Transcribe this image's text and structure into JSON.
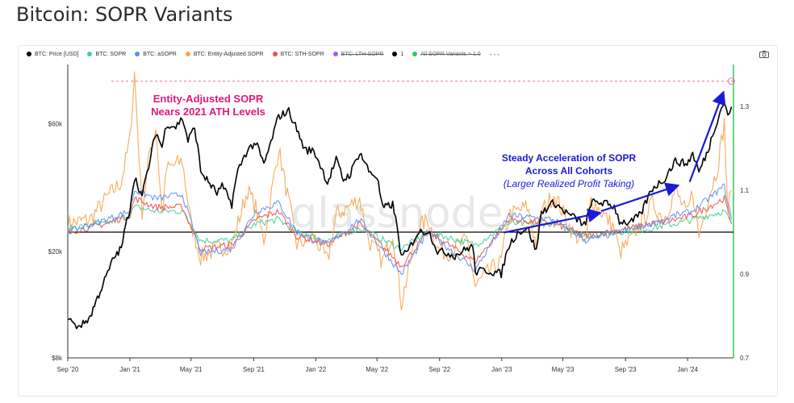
{
  "page": {
    "title": "Bitcoin: SOPR Variants"
  },
  "legend": [
    {
      "label": "BTC: Price [USD]",
      "color": "#000000",
      "struck": false
    },
    {
      "label": "BTC: SOPR",
      "color": "#3ed19b",
      "struck": false
    },
    {
      "label": "BTC: aSOPR",
      "color": "#5b8ff9",
      "struck": false
    },
    {
      "label": "BTC: Entity-Adjusted SOPR",
      "color": "#f7a44a",
      "struck": false
    },
    {
      "label": "BTC: STH-SOPR",
      "color": "#f0504f",
      "struck": false
    },
    {
      "label": "BTC: LTH-SOPR",
      "color": "#a75cf0",
      "struck": true
    },
    {
      "label": "1",
      "color": "#000000",
      "struck": false
    },
    {
      "label": "All SOPR Variants > 1.0",
      "color": "#34c75c",
      "struck": true
    }
  ],
  "legend_more": "- - -",
  "watermark": "glassnode",
  "annotations": {
    "ath_line1": "Entity-Adjusted SOPR",
    "ath_line2": "Nears 2021 ATH Levels",
    "accel_line1": "Steady Acceleration of SOPR",
    "accel_line2": "Across All Cohorts",
    "accel_line3": "(Larger Realized Profit Taking)"
  },
  "chart_data": {
    "type": "line",
    "x_axis": {
      "ticks": [
        "Sep '20",
        "Jan '21",
        "May '21",
        "Sep '21",
        "Jan '22",
        "May '22",
        "Sep '22",
        "Jan '23",
        "May '23",
        "Sep '23",
        "Jan '24"
      ],
      "range": [
        "2020-09-01",
        "2024-03-31"
      ]
    },
    "y_left": {
      "scale": "log",
      "ticks": [
        "$8k",
        "$20k",
        "$60k"
      ],
      "tick_values": [
        8000,
        20000,
        60000
      ],
      "range": [
        8000,
        100000
      ]
    },
    "y_right": {
      "scale": "linear",
      "ticks": [
        "0.7",
        "0.9",
        "1.1",
        "1.3"
      ],
      "tick_values": [
        0.7,
        0.9,
        1.1,
        1.3
      ],
      "range": [
        0.7,
        1.4
      ]
    },
    "reference_line": {
      "name": "1",
      "axis": "right",
      "value": 1.0,
      "color": "#000000"
    },
    "ath_level_line": {
      "axis": "right",
      "value": 1.36,
      "color": "#f06fa0",
      "style": "dashed"
    },
    "colors": {
      "price": "#000000",
      "sopr": "#3ed19b",
      "asopr": "#5b8ff9",
      "entity": "#f7a44a",
      "sth": "#f0504f",
      "right_axis": "#34c75c"
    },
    "series": [
      {
        "name": "BTC: Price [USD]",
        "axis": "left",
        "color": "#000000",
        "points": [
          [
            "2020-09-01",
            11500
          ],
          [
            "2020-09-15",
            10500
          ],
          [
            "2020-10-01",
            10700
          ],
          [
            "2020-10-15",
            11400
          ],
          [
            "2020-11-01",
            13800
          ],
          [
            "2020-11-15",
            16000
          ],
          [
            "2020-12-01",
            19000
          ],
          [
            "2020-12-15",
            20500
          ],
          [
            "2021-01-01",
            29000
          ],
          [
            "2021-01-10",
            38000
          ],
          [
            "2021-01-25",
            32000
          ],
          [
            "2021-02-10",
            44000
          ],
          [
            "2021-02-21",
            56000
          ],
          [
            "2021-03-05",
            49000
          ],
          [
            "2021-03-14",
            60000
          ],
          [
            "2021-04-01",
            58500
          ],
          [
            "2021-04-14",
            63000
          ],
          [
            "2021-04-25",
            52000
          ],
          [
            "2021-05-08",
            58000
          ],
          [
            "2021-05-20",
            40000
          ],
          [
            "2021-06-01",
            37000
          ],
          [
            "2021-06-21",
            33000
          ],
          [
            "2021-07-01",
            35000
          ],
          [
            "2021-07-20",
            30000
          ],
          [
            "2021-08-01",
            40000
          ],
          [
            "2021-08-20",
            48000
          ],
          [
            "2021-09-05",
            51000
          ],
          [
            "2021-09-21",
            42000
          ],
          [
            "2021-10-05",
            51000
          ],
          [
            "2021-10-20",
            64000
          ],
          [
            "2021-11-09",
            67000
          ],
          [
            "2021-11-25",
            57000
          ],
          [
            "2021-12-10",
            48000
          ],
          [
            "2021-12-28",
            47500
          ],
          [
            "2022-01-10",
            42000
          ],
          [
            "2022-01-24",
            36000
          ],
          [
            "2022-02-10",
            44000
          ],
          [
            "2022-02-24",
            37000
          ],
          [
            "2022-03-10",
            39000
          ],
          [
            "2022-03-28",
            47000
          ],
          [
            "2022-04-15",
            40000
          ],
          [
            "2022-05-01",
            38000
          ],
          [
            "2022-05-12",
            29000
          ],
          [
            "2022-06-01",
            30000
          ],
          [
            "2022-06-18",
            19000
          ],
          [
            "2022-07-01",
            20000
          ],
          [
            "2022-07-20",
            23500
          ],
          [
            "2022-08-10",
            24000
          ],
          [
            "2022-08-28",
            20000
          ],
          [
            "2022-09-15",
            19800
          ],
          [
            "2022-10-01",
            19300
          ],
          [
            "2022-10-25",
            20500
          ],
          [
            "2022-11-05",
            21000
          ],
          [
            "2022-11-10",
            16800
          ],
          [
            "2022-12-01",
            17000
          ],
          [
            "2022-12-31",
            16500
          ],
          [
            "2023-01-15",
            21000
          ],
          [
            "2023-02-01",
            23500
          ],
          [
            "2023-02-20",
            24500
          ],
          [
            "2023-03-10",
            20000
          ],
          [
            "2023-03-20",
            28000
          ],
          [
            "2023-04-14",
            30500
          ],
          [
            "2023-05-01",
            28500
          ],
          [
            "2023-05-20",
            27000
          ],
          [
            "2023-06-15",
            25000
          ],
          [
            "2023-06-25",
            30500
          ],
          [
            "2023-07-15",
            30500
          ],
          [
            "2023-08-10",
            29500
          ],
          [
            "2023-08-20",
            26000
          ],
          [
            "2023-09-10",
            25500
          ],
          [
            "2023-10-01",
            27500
          ],
          [
            "2023-10-24",
            34500
          ],
          [
            "2023-11-15",
            37000
          ],
          [
            "2023-12-08",
            43500
          ],
          [
            "2023-12-31",
            42500
          ],
          [
            "2024-01-11",
            46500
          ],
          [
            "2024-01-23",
            39500
          ],
          [
            "2024-02-10",
            47500
          ],
          [
            "2024-02-28",
            62000
          ],
          [
            "2024-03-13",
            73000
          ],
          [
            "2024-03-20",
            63500
          ],
          [
            "2024-03-27",
            69500
          ]
        ]
      },
      {
        "name": "BTC: SOPR",
        "axis": "right",
        "color": "#3ed19b",
        "points": [
          [
            "2020-09-01",
            1.01
          ],
          [
            "2020-11-15",
            1.02
          ],
          [
            "2021-01-01",
            1.04
          ],
          [
            "2021-01-10",
            1.06
          ],
          [
            "2021-02-21",
            1.05
          ],
          [
            "2021-04-14",
            1.05
          ],
          [
            "2021-05-20",
            0.98
          ],
          [
            "2021-07-20",
            0.98
          ],
          [
            "2021-09-05",
            1.02
          ],
          [
            "2021-10-20",
            1.03
          ],
          [
            "2021-11-25",
            1.0
          ],
          [
            "2022-01-24",
            0.98
          ],
          [
            "2022-03-28",
            1.01
          ],
          [
            "2022-06-18",
            0.96
          ],
          [
            "2022-08-10",
            1.0
          ],
          [
            "2022-11-10",
            0.97
          ],
          [
            "2023-01-15",
            1.02
          ],
          [
            "2023-04-14",
            1.02
          ],
          [
            "2023-06-15",
            0.99
          ],
          [
            "2023-10-24",
            1.01
          ],
          [
            "2023-12-08",
            1.02
          ],
          [
            "2024-01-11",
            1.03
          ],
          [
            "2024-03-13",
            1.05
          ],
          [
            "2024-03-27",
            1.02
          ]
        ]
      },
      {
        "name": "BTC: aSOPR",
        "axis": "right",
        "color": "#5b8ff9",
        "points": [
          [
            "2020-09-01",
            1.0
          ],
          [
            "2020-11-15",
            1.03
          ],
          [
            "2021-01-01",
            1.05
          ],
          [
            "2021-01-10",
            1.1
          ],
          [
            "2021-02-21",
            1.08
          ],
          [
            "2021-04-14",
            1.09
          ],
          [
            "2021-05-20",
            0.95
          ],
          [
            "2021-07-20",
            0.96
          ],
          [
            "2021-09-05",
            1.05
          ],
          [
            "2021-10-20",
            1.07
          ],
          [
            "2021-11-25",
            1.0
          ],
          [
            "2022-01-24",
            0.97
          ],
          [
            "2022-03-28",
            1.03
          ],
          [
            "2022-06-18",
            0.9
          ],
          [
            "2022-08-10",
            1.0
          ],
          [
            "2022-11-10",
            0.91
          ],
          [
            "2023-01-15",
            1.04
          ],
          [
            "2023-04-14",
            1.03
          ],
          [
            "2023-06-15",
            0.98
          ],
          [
            "2023-10-24",
            1.02
          ],
          [
            "2023-12-08",
            1.04
          ],
          [
            "2024-01-11",
            1.05
          ],
          [
            "2024-03-13",
            1.11
          ],
          [
            "2024-03-27",
            1.03
          ]
        ]
      },
      {
        "name": "BTC: Entity-Adjusted SOPR",
        "axis": "right",
        "color": "#f7a44a",
        "points": [
          [
            "2020-09-01",
            1.02
          ],
          [
            "2020-10-15",
            1.03
          ],
          [
            "2020-11-15",
            1.08
          ],
          [
            "2020-12-15",
            1.12
          ],
          [
            "2021-01-01",
            1.22
          ],
          [
            "2021-01-10",
            1.38
          ],
          [
            "2021-01-25",
            1.05
          ],
          [
            "2021-02-10",
            1.2
          ],
          [
            "2021-02-21",
            1.25
          ],
          [
            "2021-03-05",
            1.04
          ],
          [
            "2021-03-14",
            1.15
          ],
          [
            "2021-04-14",
            1.17
          ],
          [
            "2021-05-01",
            1.02
          ],
          [
            "2021-05-20",
            0.94
          ],
          [
            "2021-06-21",
            0.96
          ],
          [
            "2021-07-20",
            0.97
          ],
          [
            "2021-08-20",
            1.1
          ],
          [
            "2021-09-05",
            1.06
          ],
          [
            "2021-09-21",
            0.98
          ],
          [
            "2021-10-20",
            1.2
          ],
          [
            "2021-11-09",
            1.07
          ],
          [
            "2021-11-25",
            0.97
          ],
          [
            "2021-12-28",
            0.99
          ],
          [
            "2022-01-24",
            0.93
          ],
          [
            "2022-02-10",
            1.04
          ],
          [
            "2022-03-28",
            1.08
          ],
          [
            "2022-04-15",
            0.98
          ],
          [
            "2022-05-12",
            0.93
          ],
          [
            "2022-06-01",
            1.0
          ],
          [
            "2022-06-18",
            0.83
          ],
          [
            "2022-07-20",
            1.01
          ],
          [
            "2022-08-10",
            1.03
          ],
          [
            "2022-08-28",
            0.96
          ],
          [
            "2022-09-15",
            0.95
          ],
          [
            "2022-10-25",
            0.98
          ],
          [
            "2022-11-10",
            0.87
          ],
          [
            "2022-12-01",
            0.9
          ],
          [
            "2022-12-31",
            0.93
          ],
          [
            "2023-01-15",
            1.04
          ],
          [
            "2023-02-20",
            1.06
          ],
          [
            "2023-03-10",
            0.97
          ],
          [
            "2023-03-20",
            1.05
          ],
          [
            "2023-04-14",
            1.09
          ],
          [
            "2023-05-20",
            1.0
          ],
          [
            "2023-06-15",
            0.97
          ],
          [
            "2023-06-25",
            1.08
          ],
          [
            "2023-08-10",
            1.01
          ],
          [
            "2023-08-20",
            0.95
          ],
          [
            "2023-09-10",
            0.98
          ],
          [
            "2023-10-24",
            1.07
          ],
          [
            "2023-11-15",
            1.03
          ],
          [
            "2023-12-08",
            1.1
          ],
          [
            "2023-12-31",
            1.04
          ],
          [
            "2024-01-11",
            1.1
          ],
          [
            "2024-01-23",
            0.99
          ],
          [
            "2024-02-10",
            1.08
          ],
          [
            "2024-02-28",
            1.15
          ],
          [
            "2024-03-13",
            1.26
          ],
          [
            "2024-03-20",
            1.05
          ],
          [
            "2024-03-27",
            1.1
          ]
        ]
      },
      {
        "name": "BTC: STH-SOPR",
        "axis": "right",
        "color": "#f0504f",
        "points": [
          [
            "2020-09-01",
            1.0
          ],
          [
            "2020-11-15",
            1.02
          ],
          [
            "2021-01-01",
            1.04
          ],
          [
            "2021-01-10",
            1.08
          ],
          [
            "2021-02-21",
            1.06
          ],
          [
            "2021-04-14",
            1.06
          ],
          [
            "2021-05-20",
            0.96
          ],
          [
            "2021-07-20",
            0.97
          ],
          [
            "2021-09-05",
            1.03
          ],
          [
            "2021-10-20",
            1.05
          ],
          [
            "2021-11-25",
            0.99
          ],
          [
            "2022-01-24",
            0.97
          ],
          [
            "2022-03-28",
            1.02
          ],
          [
            "2022-06-18",
            0.92
          ],
          [
            "2022-08-10",
            1.0
          ],
          [
            "2022-11-10",
            0.93
          ],
          [
            "2023-01-15",
            1.03
          ],
          [
            "2023-04-14",
            1.02
          ],
          [
            "2023-06-15",
            0.99
          ],
          [
            "2023-10-24",
            1.02
          ],
          [
            "2023-12-08",
            1.03
          ],
          [
            "2024-01-11",
            1.04
          ],
          [
            "2024-03-13",
            1.08
          ],
          [
            "2024-03-27",
            1.02
          ]
        ]
      }
    ]
  }
}
